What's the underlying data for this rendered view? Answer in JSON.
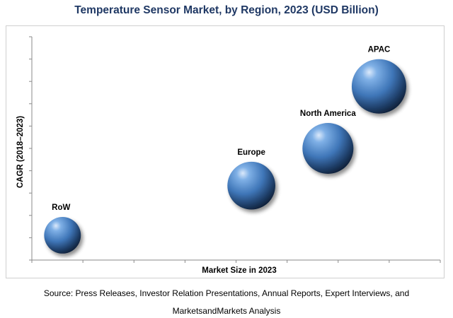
{
  "chart_data": {
    "type": "bubble",
    "title": "Temperature Sensor Market, by Region, 2023 (USD Billion)",
    "xlabel": "Market Size in 2023",
    "ylabel": "CAGR (2018–2023)",
    "axes_values_hidden": true,
    "x_ticks_count": 8,
    "y_ticks_count": 10,
    "grid": false,
    "bubble_color": "#3f76b8",
    "points": [
      {
        "name": "RoW",
        "x": 0.6,
        "y": 1.0,
        "size": 0.72
      },
      {
        "name": "Europe",
        "x": 4.3,
        "y": 3.0,
        "size": 0.94
      },
      {
        "name": "North America",
        "x": 5.8,
        "y": 4.5,
        "size": 1.0
      },
      {
        "name": "APAC",
        "x": 6.8,
        "y": 7.0,
        "size": 1.07
      }
    ],
    "xlim": [
      0,
      8
    ],
    "ylim": [
      0,
      9
    ]
  },
  "source_line1": "Source: Press Releases, Investor Relation Presentations, Annual Reports, Expert Interviews, and",
  "source_line2": "MarketsandMarkets Analysis"
}
